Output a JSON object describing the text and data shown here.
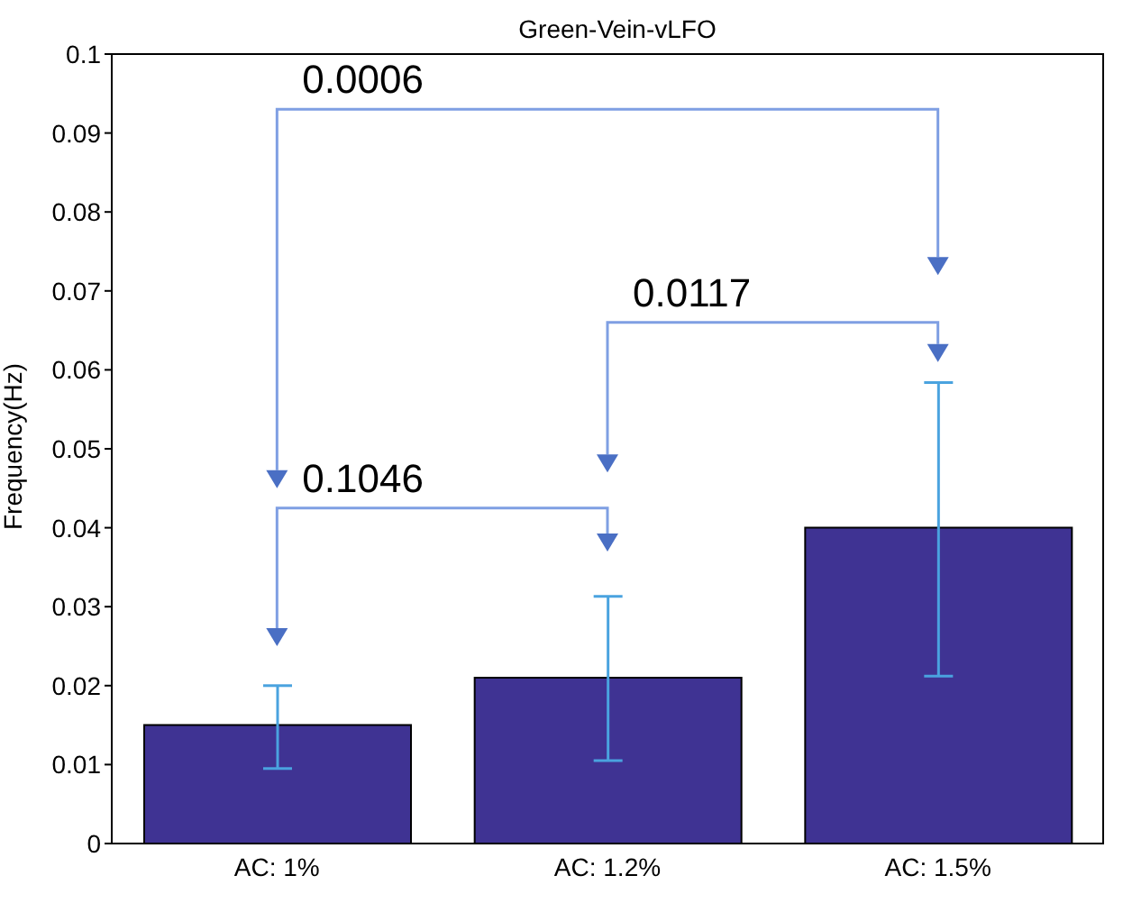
{
  "chart_data": {
    "type": "bar",
    "title": "Green-Vein-vLFO",
    "ylabel": "Frequency(Hz)",
    "categories": [
      "AC: 1%",
      "AC: 1.2%",
      "AC: 1.5%"
    ],
    "values": [
      0.015,
      0.021,
      0.04
    ],
    "errors": [
      [
        0.0095,
        0.02
      ],
      [
        0.0105,
        0.0313
      ],
      [
        0.0212,
        0.0584
      ]
    ],
    "color": "#3f3393",
    "ylim": [
      0,
      0.1
    ],
    "yticks": [
      0,
      0.01,
      0.02,
      0.03,
      0.04,
      0.05,
      0.06,
      0.07,
      0.08,
      0.09,
      0.1
    ],
    "annotations": [
      "0.1046",
      "0.0117",
      "0.0006"
    ]
  }
}
